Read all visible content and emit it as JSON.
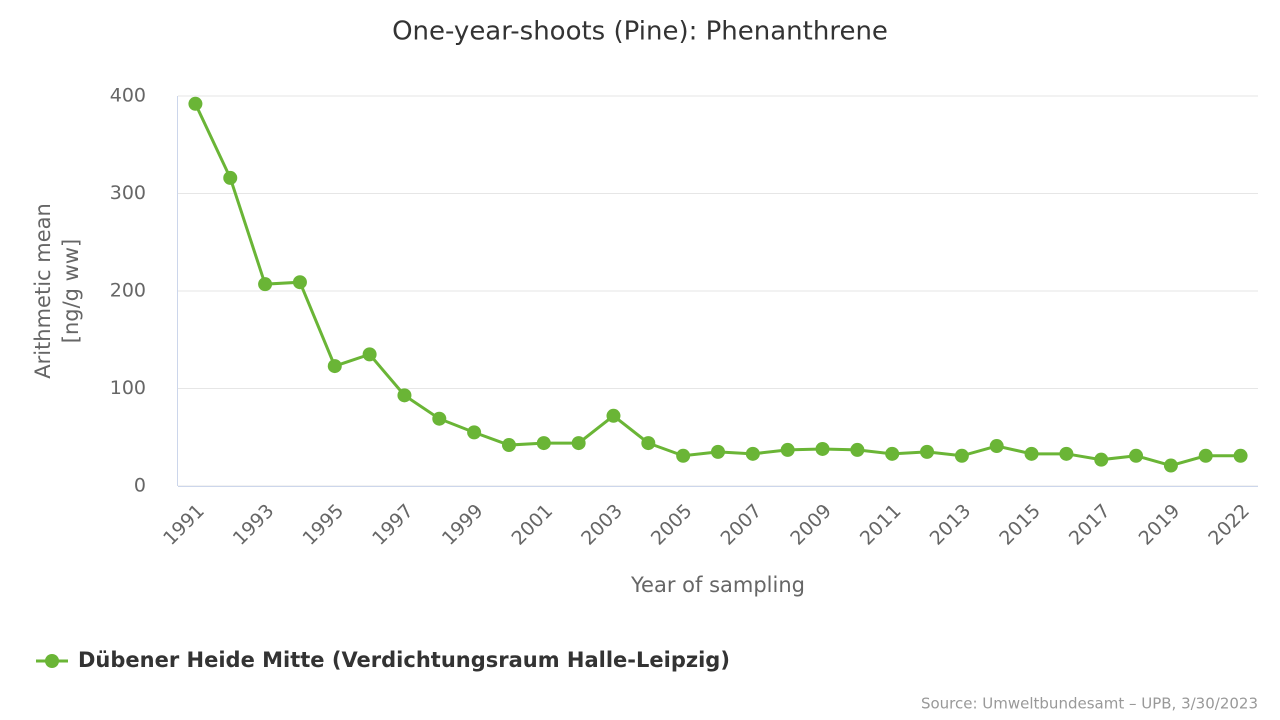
{
  "chart_data": {
    "type": "line",
    "title": "One-year-shoots (Pine): Phenanthrene",
    "x_label": "Year of sampling",
    "y_label": [
      "Arithmetic mean",
      "[ng/g ww]"
    ],
    "categories": [
      "1991",
      null,
      "1993",
      null,
      "1995",
      null,
      "1997",
      null,
      "1999",
      null,
      "2001",
      null,
      "2003",
      null,
      "2005",
      null,
      "2007",
      null,
      "2009",
      null,
      "2011",
      null,
      "2013",
      null,
      "2015",
      null,
      "2017",
      null,
      "2019",
      null,
      "2022"
    ],
    "series": [
      {
        "name": "Dübener Heide Mitte (Verdichtungsraum Halle-Leipzig)",
        "color": "#6ab536",
        "values": [
          392,
          316,
          207,
          209,
          123,
          135,
          93,
          69,
          55,
          42,
          44,
          44,
          72,
          44,
          31,
          35,
          33,
          37,
          38,
          37,
          33,
          35,
          31,
          41,
          33,
          33,
          27,
          31,
          21,
          31,
          31
        ]
      }
    ],
    "ylim": [
      0,
      400
    ],
    "yticks": [
      0,
      100,
      200,
      300,
      400
    ],
    "grid": true,
    "source": "Source: Umweltbundesamt – UPB, 3/30/2023"
  }
}
